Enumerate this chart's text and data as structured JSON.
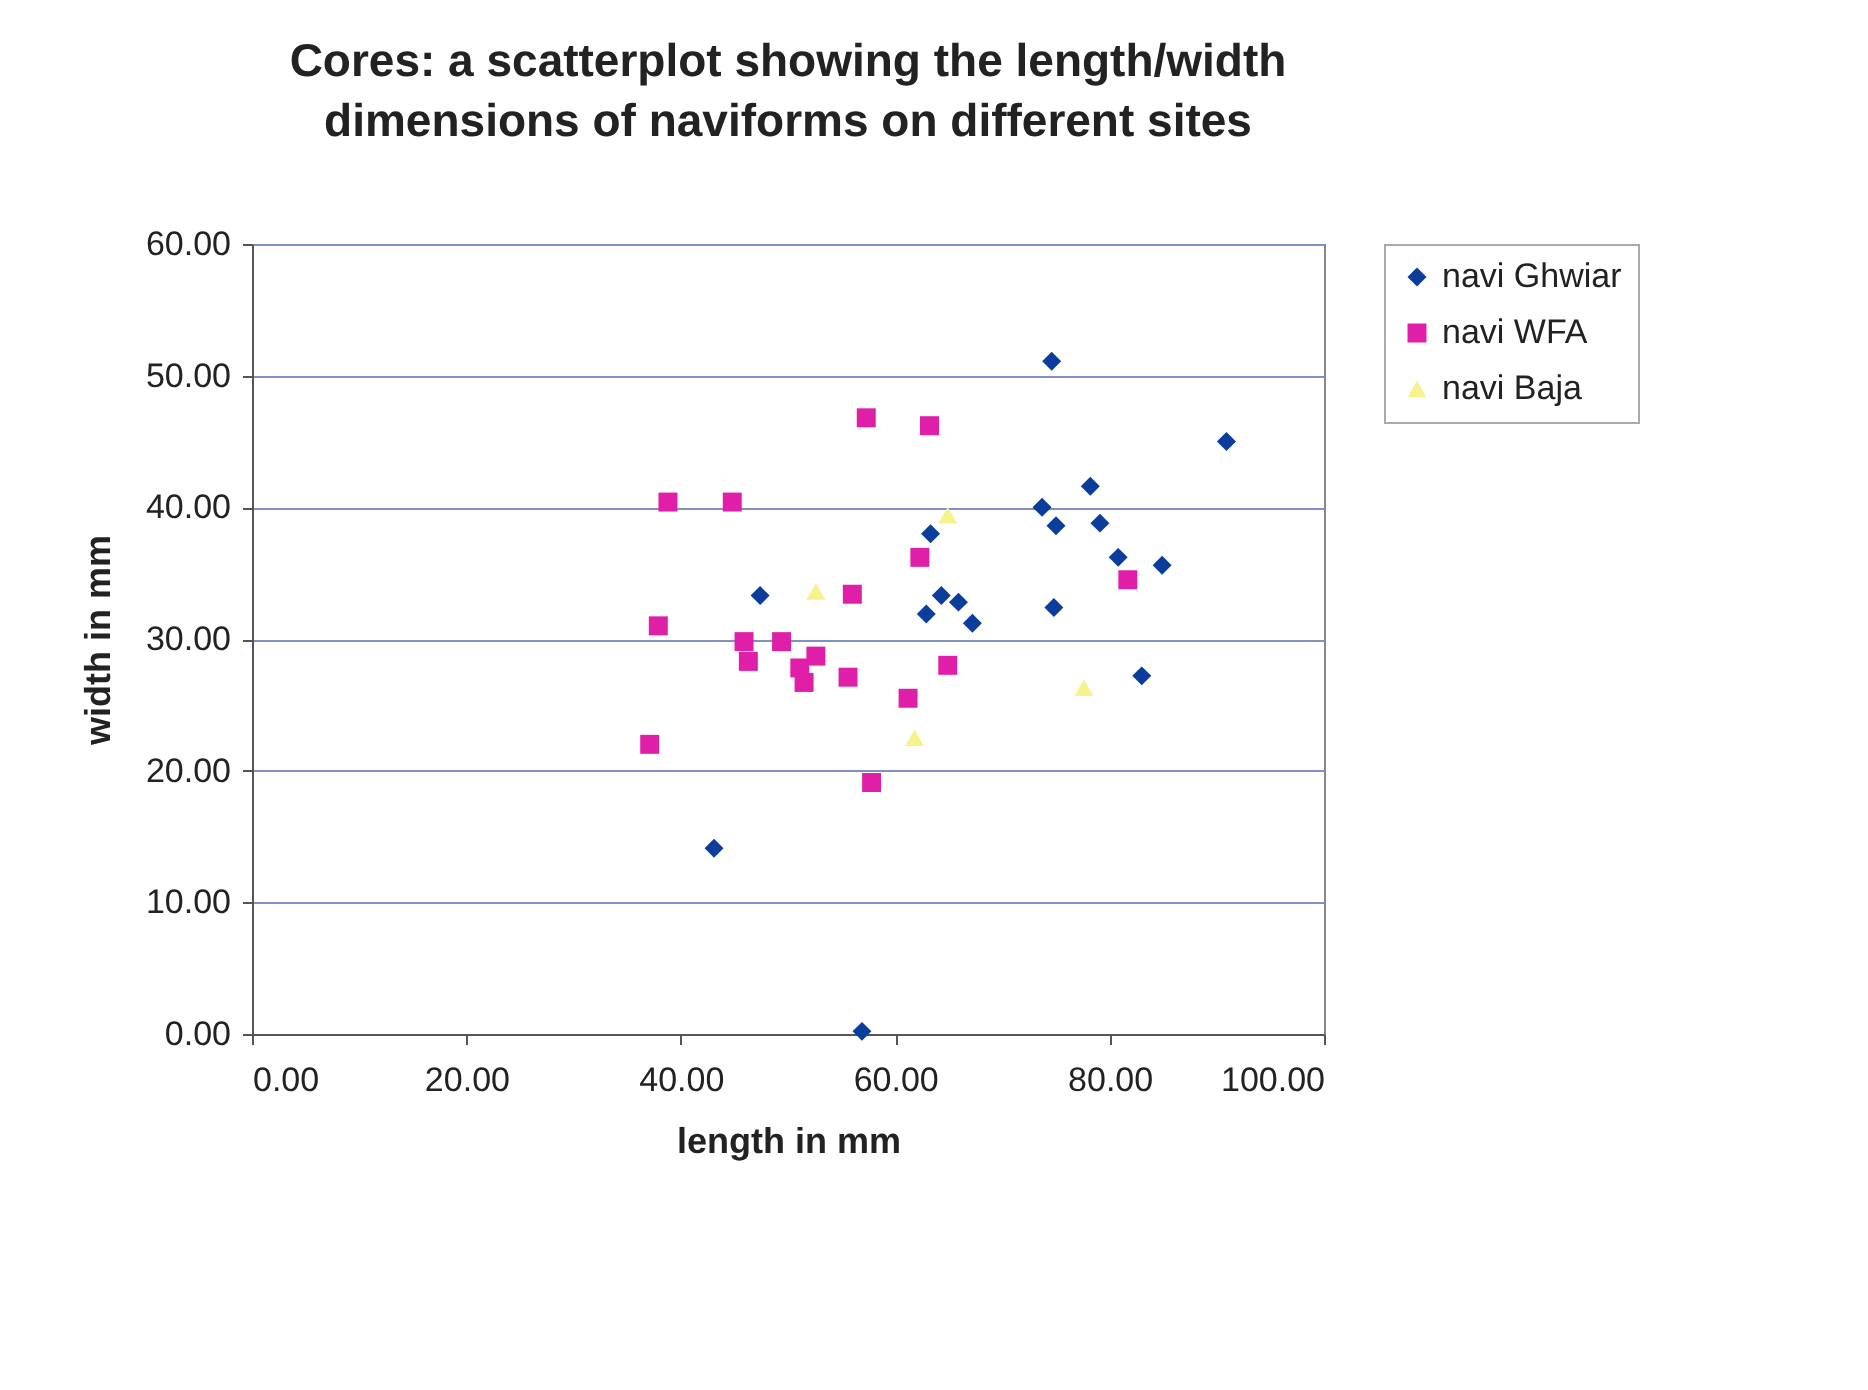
{
  "chart_data": {
    "type": "scatter",
    "title": "Cores: a scatterplot showing the length/width dimensions of naviforms on different sites",
    "xlabel": "length in mm",
    "ylabel": "width in mm",
    "xlim": [
      0,
      100
    ],
    "xticks": [
      {
        "value": 0,
        "label": "0.00"
      },
      {
        "value": 20,
        "label": "20.00"
      },
      {
        "value": 40,
        "label": "40.00"
      },
      {
        "value": 60,
        "label": "60.00"
      },
      {
        "value": 80,
        "label": "80.00"
      },
      {
        "value": 100,
        "label": "100.00"
      }
    ],
    "ylim": [
      0,
      60
    ],
    "yticks": [
      {
        "value": 0,
        "label": "0.00"
      },
      {
        "value": 10,
        "label": "10.00"
      },
      {
        "value": 20,
        "label": "20.00"
      },
      {
        "value": 30,
        "label": "30.00"
      },
      {
        "value": 40,
        "label": "40.00"
      },
      {
        "value": 50,
        "label": "50.00"
      },
      {
        "value": 60,
        "label": "60.00"
      }
    ],
    "grid": "y",
    "legend": "right",
    "series": [
      {
        "name": "navi Ghwiar",
        "color": "#0a3d9c",
        "marker": "diamond",
        "x": [
          43.1,
          47.4,
          56.9,
          63.3,
          64.3,
          62.9,
          65.9,
          67.2,
          74.6,
          90.9,
          78.2,
          73.7,
          75.0,
          79.1,
          80.8,
          84.9,
          74.8,
          83.0
        ],
        "values": [
          14.1,
          33.3,
          0.2,
          38.0,
          33.3,
          31.9,
          32.8,
          31.2,
          51.1,
          45.0,
          41.6,
          40.0,
          38.6,
          38.8,
          36.2,
          35.6,
          32.4,
          27.2
        ]
      },
      {
        "name": "navi WFA",
        "color": "#e01fa8",
        "marker": "square",
        "x": [
          57.3,
          63.2,
          38.8,
          44.8,
          62.3,
          56.0,
          37.9,
          45.9,
          46.3,
          49.4,
          52.6,
          51.1,
          51.5,
          55.6,
          64.9,
          61.2,
          37.1,
          57.8,
          81.7
        ],
        "values": [
          46.8,
          46.2,
          40.4,
          40.4,
          36.2,
          33.4,
          31.0,
          29.8,
          28.3,
          29.8,
          28.7,
          27.8,
          26.7,
          27.1,
          28.0,
          25.5,
          22.0,
          19.1,
          34.5
        ]
      },
      {
        "name": "navi Baja",
        "color": "#f6f28c",
        "marker": "triangle",
        "x": [
          52.6,
          64.9,
          61.8,
          77.6
        ],
        "values": [
          33.6,
          39.4,
          22.5,
          26.3
        ]
      }
    ]
  }
}
